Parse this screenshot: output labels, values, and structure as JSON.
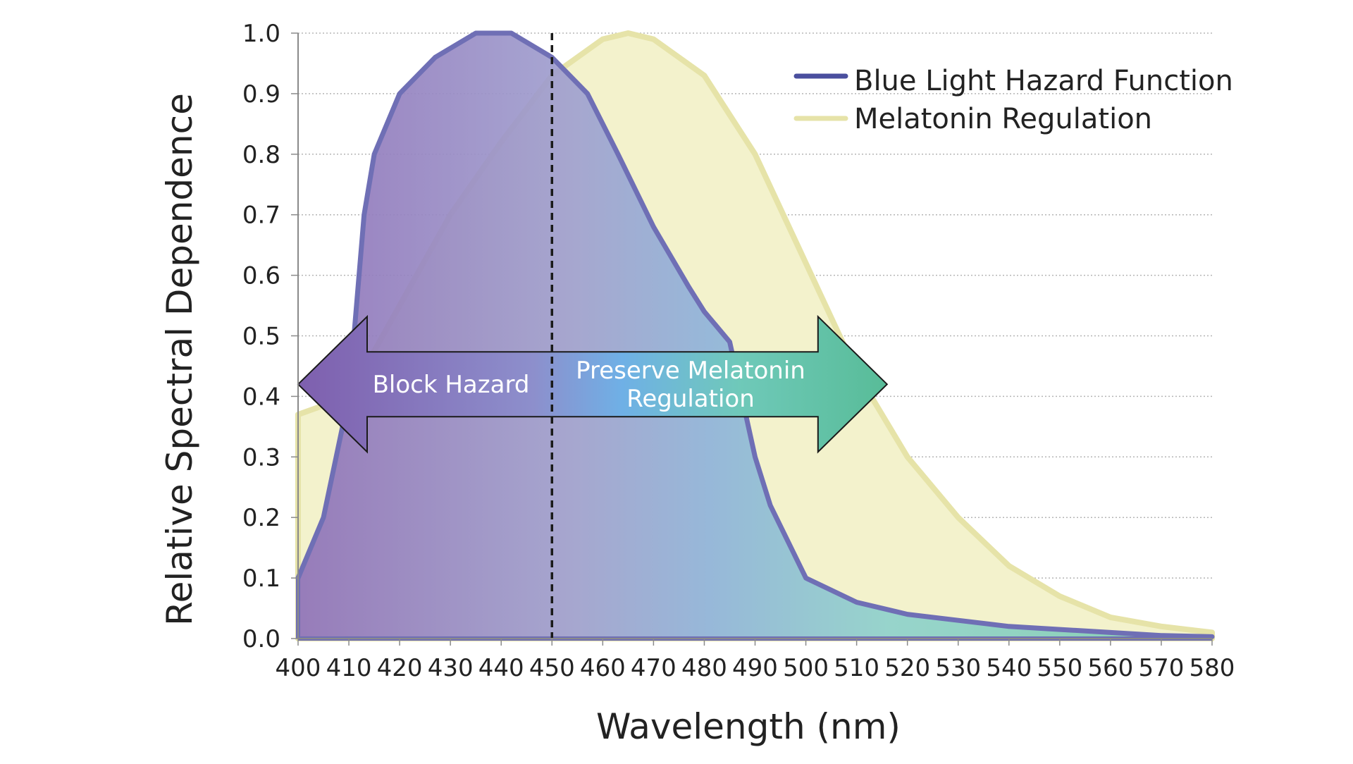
{
  "chart_data": {
    "type": "area",
    "xlabel": "Wavelength (nm)",
    "ylabel": "Relative Spectral Dependence",
    "xlim": [
      400,
      580
    ],
    "ylim": [
      0,
      1.0
    ],
    "x_ticks": [
      "400",
      "410",
      "420",
      "430",
      "440",
      "450",
      "460",
      "470",
      "480",
      "490",
      "500",
      "510",
      "520",
      "530",
      "540",
      "550",
      "560",
      "570",
      "580"
    ],
    "y_ticks": [
      "0.0",
      "0.1",
      "0.2",
      "0.3",
      "0.4",
      "0.5",
      "0.6",
      "0.7",
      "0.8",
      "0.9",
      "1.0"
    ],
    "grid": "horizontal dotted",
    "legend_position": "top-right",
    "series": [
      {
        "name": "Blue Light Hazard Function",
        "color": "#6F6FB5",
        "x": [
          400,
          405,
          410,
          412,
          413,
          415,
          420,
          427,
          435,
          442,
          450,
          457,
          463,
          470,
          477,
          480,
          485,
          490,
          493,
          500,
          510,
          520,
          530,
          540,
          550,
          560,
          570,
          580
        ],
        "y": [
          0.1,
          0.2,
          0.4,
          0.6,
          0.7,
          0.8,
          0.9,
          0.96,
          1.0,
          1.0,
          0.96,
          0.9,
          0.8,
          0.68,
          0.58,
          0.54,
          0.49,
          0.3,
          0.22,
          0.1,
          0.06,
          0.04,
          0.03,
          0.02,
          0.015,
          0.01,
          0.005,
          0.003
        ]
      },
      {
        "name": "Melatonin Regulation",
        "color": "#E6E3A8",
        "x": [
          400,
          410,
          420,
          430,
          440,
          450,
          460,
          465,
          470,
          480,
          490,
          500,
          510,
          520,
          530,
          540,
          550,
          560,
          570,
          580
        ],
        "y": [
          0.37,
          0.4,
          0.55,
          0.7,
          0.82,
          0.93,
          0.99,
          1.0,
          0.99,
          0.93,
          0.8,
          0.62,
          0.44,
          0.3,
          0.2,
          0.12,
          0.07,
          0.035,
          0.02,
          0.01
        ]
      }
    ],
    "annotations": {
      "marker_line_x": 450,
      "arrow_from": 400,
      "arrow_to": 516,
      "left_label": "Block Hazard",
      "right_label_line1": "Preserve Melatonin",
      "right_label_line2": "Regulation"
    }
  }
}
